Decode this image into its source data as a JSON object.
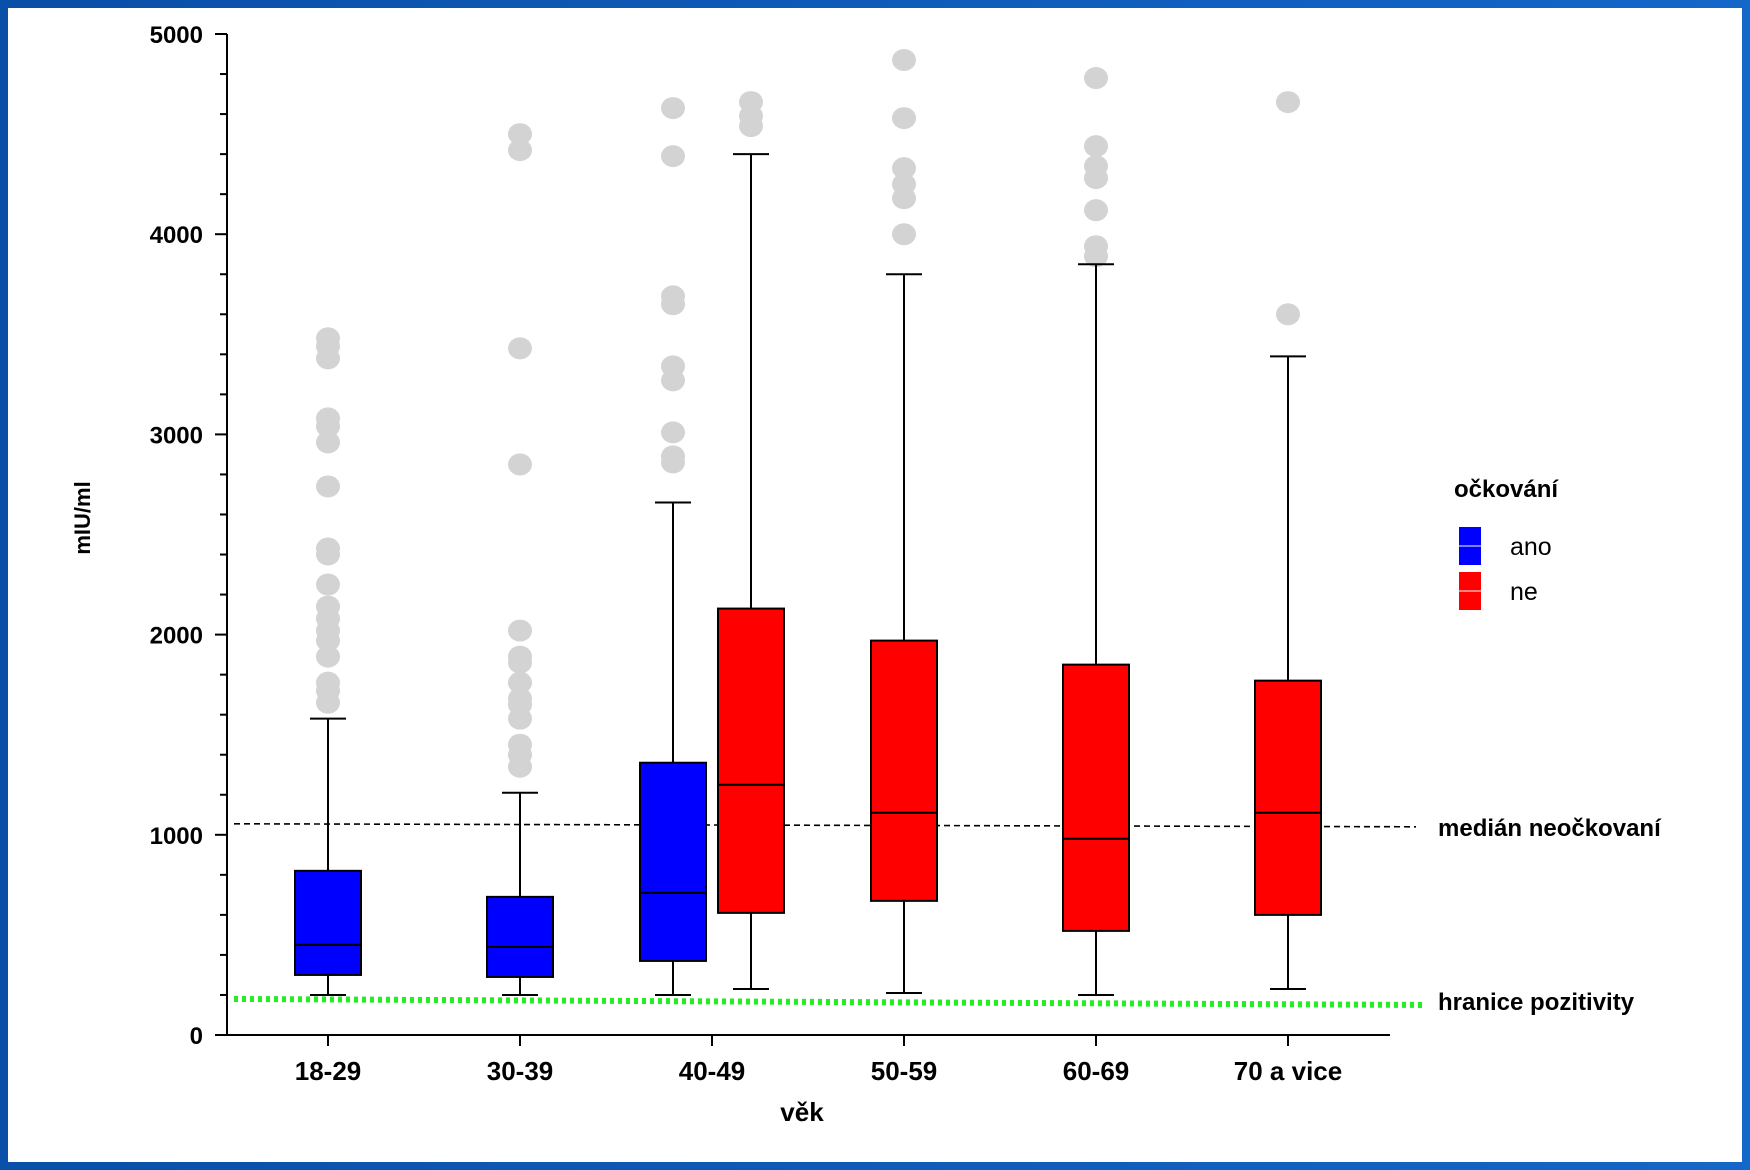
{
  "chart_data": {
    "type": "boxplot",
    "ylabel": "mIU/ml",
    "xlabel": "věk",
    "ylim": [
      0,
      5000
    ],
    "yticks": [
      "0",
      "1000",
      "2000",
      "3000",
      "4000",
      "5000"
    ],
    "categories": [
      "18-29",
      "30-39",
      "40-49",
      "50-59",
      "60-69",
      "70 a vice"
    ],
    "legend": {
      "title": "očkování",
      "placement": "right",
      "entries": [
        {
          "label": "ano",
          "color": "#0000ff"
        },
        {
          "label": "ne",
          "color": "#ff0000"
        }
      ]
    },
    "series": [
      {
        "name": "ano",
        "color": "#0000ff",
        "boxes": [
          {
            "category": "18-29",
            "whisker_low": 200,
            "q1": 300,
            "median": 450,
            "q3": 820,
            "whisker_high": 1580,
            "outliers": [
              3480,
              3440,
              3380,
              3080,
              3040,
              2960,
              2740,
              2430,
              2400,
              2250,
              2140,
              2080,
              2020,
              1970,
              1890,
              1760,
              1720,
              1660
            ]
          },
          {
            "category": "30-39",
            "whisker_low": 200,
            "q1": 290,
            "median": 440,
            "q3": 690,
            "whisker_high": 1210,
            "outliers": [
              4500,
              4420,
              3430,
              2850,
              2020,
              1890,
              1860,
              1760,
              1680,
              1650,
              1580,
              1450,
              1400,
              1340
            ]
          },
          {
            "category": "40-49",
            "whisker_low": 200,
            "q1": 370,
            "median": 710,
            "q3": 1360,
            "whisker_high": 2660,
            "outliers": [
              4630,
              4390,
              3690,
              3650,
              3340,
              3270,
              3010,
              2890,
              2860
            ]
          }
        ]
      },
      {
        "name": "ne",
        "color": "#ff0000",
        "boxes": [
          {
            "category": "40-49",
            "whisker_low": 230,
            "q1": 610,
            "median": 1250,
            "q3": 2130,
            "whisker_high": 4400,
            "outliers": [
              4660,
              4590,
              4540
            ]
          },
          {
            "category": "50-59",
            "whisker_low": 210,
            "q1": 670,
            "median": 1110,
            "q3": 1970,
            "whisker_high": 3800,
            "outliers": [
              4870,
              4580,
              4330,
              4250,
              4180,
              4000
            ]
          },
          {
            "category": "60-69",
            "whisker_low": 200,
            "q1": 520,
            "median": 980,
            "q3": 1850,
            "whisker_high": 3850,
            "outliers": [
              4780,
              4440,
              4340,
              4280,
              4120,
              3940,
              3890
            ]
          },
          {
            "category": "70 a vice",
            "whisker_low": 230,
            "q1": 600,
            "median": 1110,
            "q3": 1770,
            "whisker_high": 3390,
            "outliers": [
              4660,
              3600
            ]
          }
        ]
      }
    ],
    "reference_lines": [
      {
        "label": "medián neočkovaní",
        "y_start": 1055,
        "y_end": 1040,
        "style": "dashed",
        "color": "#000000"
      },
      {
        "label": "hranice pozitivity",
        "y_start": 180,
        "y_end": 150,
        "style": "dotted",
        "color": "#22ee22"
      }
    ],
    "outlier_color": "#d3d3d3"
  }
}
